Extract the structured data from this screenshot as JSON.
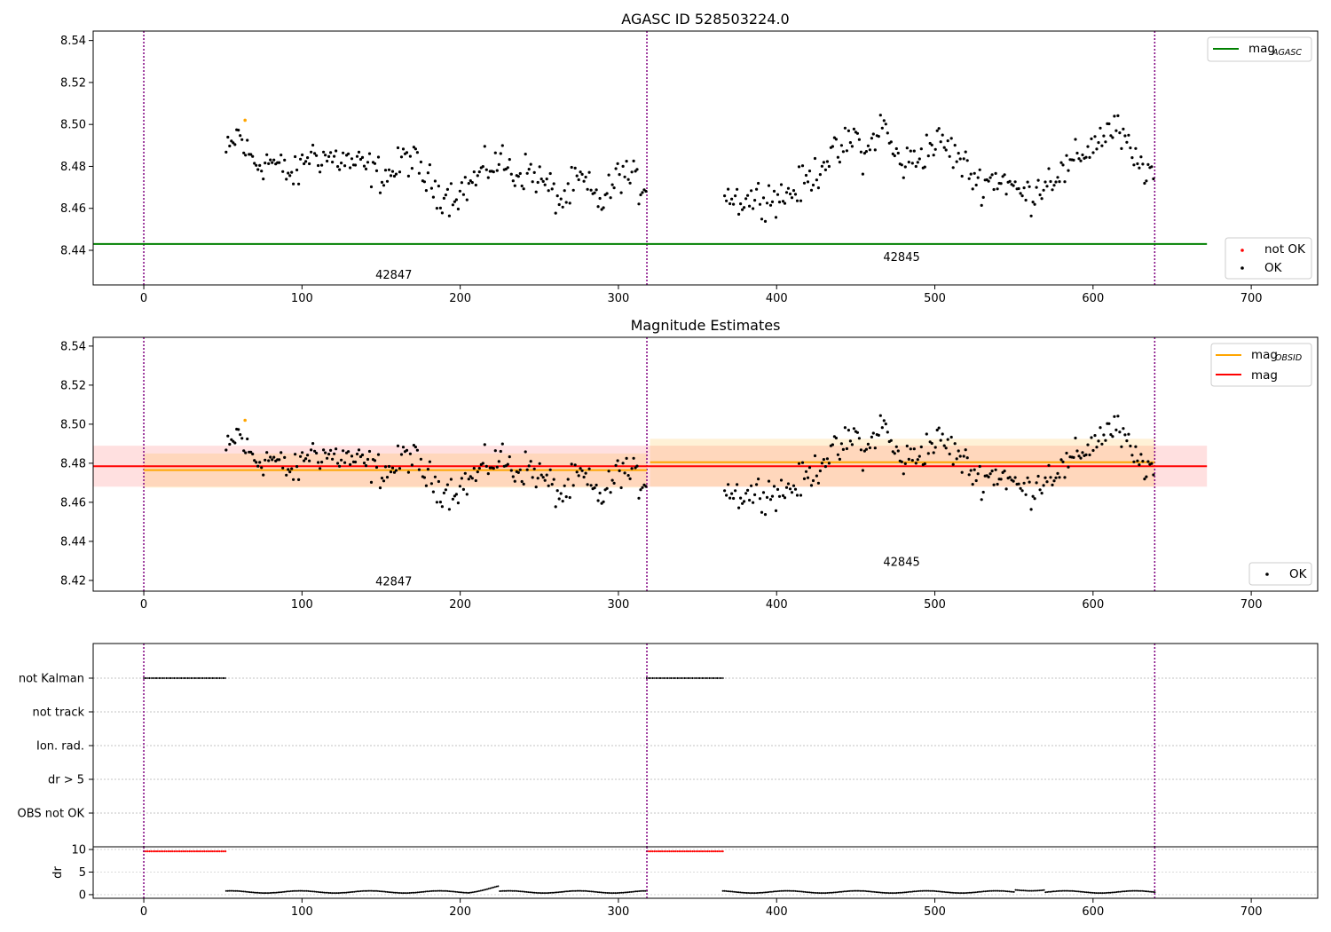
{
  "figure": {
    "panel1_title": "AGASC ID 528503224.0",
    "panel2_title": "Magnitude Estimates"
  },
  "colors": {
    "ok": "#000000",
    "not_ok": "#ff0000",
    "mag_agasc": "#008000",
    "mag_obsid": "#ffa500",
    "mag": "#ff0000",
    "obsid_boundary": "#800080",
    "flag_red": "#ff0000"
  },
  "chart_data": [
    {
      "type": "scatter",
      "title": "AGASC ID 528503224.0",
      "xlim": [
        -32,
        742
      ],
      "ylim": [
        8.4235,
        8.5445
      ],
      "xticks": [
        0,
        100,
        200,
        300,
        400,
        500,
        600,
        700
      ],
      "xtick_labels": [
        "0",
        "100",
        "200",
        "300",
        "400",
        "500",
        "600",
        "700"
      ],
      "yticks": [
        8.44,
        8.46,
        8.48,
        8.5,
        8.52,
        8.54
      ],
      "ytick_labels": [
        "8.44",
        "8.46",
        "8.48",
        "8.50",
        "8.52",
        "8.54"
      ],
      "obsid_boundaries": [
        0,
        318,
        639
      ],
      "obsid_labels": [
        {
          "text": "42847",
          "x": 158,
          "y": 8.4265
        },
        {
          "text": "42845",
          "x": 479,
          "y": 8.435
        }
      ],
      "mag_agasc": {
        "value": 8.443,
        "x_range": [
          -32,
          672
        ]
      },
      "ok_track": [
        [
          52,
          8.486
        ],
        [
          55,
          8.488
        ],
        [
          60,
          8.497
        ],
        [
          62,
          8.491
        ],
        [
          65,
          8.487
        ],
        [
          68,
          8.484
        ],
        [
          72,
          8.481
        ],
        [
          80,
          8.483
        ],
        [
          88,
          8.478
        ],
        [
          96,
          8.475
        ],
        [
          104,
          8.486
        ],
        [
          110,
          8.485
        ],
        [
          118,
          8.484
        ],
        [
          126,
          8.483
        ],
        [
          134,
          8.481
        ],
        [
          142,
          8.479
        ],
        [
          150,
          8.476
        ],
        [
          158,
          8.477
        ],
        [
          166,
          8.485
        ],
        [
          172,
          8.481
        ],
        [
          178,
          8.474
        ],
        [
          186,
          8.468
        ],
        [
          194,
          8.466
        ],
        [
          202,
          8.469
        ],
        [
          210,
          8.474
        ],
        [
          218,
          8.48
        ],
        [
          226,
          8.483
        ],
        [
          234,
          8.476
        ],
        [
          242,
          8.478
        ],
        [
          250,
          8.474
        ],
        [
          258,
          8.468
        ],
        [
          264,
          8.463
        ],
        [
          270,
          8.469
        ],
        [
          276,
          8.474
        ],
        [
          284,
          8.466
        ],
        [
          290,
          8.463
        ],
        [
          296,
          8.47
        ],
        [
          302,
          8.478
        ],
        [
          308,
          8.474
        ],
        [
          314,
          8.47
        ],
        [
          318,
          8.472
        ],
        [
          366,
          8.47
        ],
        [
          372,
          8.465
        ],
        [
          378,
          8.464
        ],
        [
          386,
          8.465
        ],
        [
          394,
          8.466
        ],
        [
          402,
          8.465
        ],
        [
          410,
          8.468
        ],
        [
          418,
          8.472
        ],
        [
          426,
          8.478
        ],
        [
          432,
          8.485
        ],
        [
          438,
          8.485
        ],
        [
          444,
          8.49
        ],
        [
          450,
          8.495
        ],
        [
          456,
          8.483
        ],
        [
          462,
          8.495
        ],
        [
          468,
          8.5
        ],
        [
          474,
          8.486
        ],
        [
          480,
          8.481
        ],
        [
          488,
          8.484
        ],
        [
          496,
          8.489
        ],
        [
          504,
          8.492
        ],
        [
          512,
          8.486
        ],
        [
          520,
          8.479
        ],
        [
          528,
          8.472
        ],
        [
          536,
          8.474
        ],
        [
          544,
          8.474
        ],
        [
          552,
          8.468
        ],
        [
          560,
          8.466
        ],
        [
          568,
          8.472
        ],
        [
          576,
          8.476
        ],
        [
          584,
          8.478
        ],
        [
          590,
          8.484
        ],
        [
          596,
          8.488
        ],
        [
          602,
          8.492
        ],
        [
          608,
          8.496
        ],
        [
          614,
          8.498
        ],
        [
          620,
          8.492
        ],
        [
          626,
          8.482
        ],
        [
          632,
          8.48
        ],
        [
          639,
          8.476
        ]
      ],
      "not_ok_points": [
        [
          64,
          8.502
        ]
      ],
      "legend": [
        {
          "label": "mag",
          "sub": "AGASC",
          "color": "#008000",
          "placement": "upper right"
        },
        {
          "label": "not OK",
          "color": "#ff0000",
          "placement": "lower right"
        },
        {
          "label": "OK",
          "color": "#000000",
          "placement": "lower right"
        }
      ]
    },
    {
      "type": "scatter",
      "title": "Magnitude Estimates",
      "xlim": [
        -32,
        742
      ],
      "ylim": [
        8.4145,
        8.5445
      ],
      "xticks": [
        0,
        100,
        200,
        300,
        400,
        500,
        600,
        700
      ],
      "xtick_labels": [
        "0",
        "100",
        "200",
        "300",
        "400",
        "500",
        "600",
        "700"
      ],
      "yticks": [
        8.42,
        8.44,
        8.46,
        8.48,
        8.5,
        8.52,
        8.54
      ],
      "ytick_labels": [
        "8.42",
        "8.44",
        "8.46",
        "8.48",
        "8.50",
        "8.52",
        "8.54"
      ],
      "obsid_boundaries": [
        0,
        318,
        639
      ],
      "obsid_labels": [
        {
          "text": "42847",
          "x": 158,
          "y": 8.4175
        },
        {
          "text": "42845",
          "x": 479,
          "y": 8.4275
        }
      ],
      "mag": {
        "value": 8.4785,
        "band": [
          8.468,
          8.489
        ],
        "x_range": [
          -32,
          672
        ]
      },
      "mag_obsid": [
        {
          "x_range": [
            0,
            318
          ],
          "value": 8.4765,
          "band": [
            8.4675,
            8.485
          ]
        },
        {
          "x_range": [
            320,
            639
          ],
          "value": 8.4805,
          "band": [
            8.468,
            8.4925
          ]
        }
      ],
      "ok_track": "same as panel 1",
      "not_ok_points": [
        [
          64,
          8.502
        ]
      ],
      "legend": [
        {
          "label": "mag",
          "sub": "OBSID",
          "color": "#ffa500",
          "placement": "upper right"
        },
        {
          "label": "mag",
          "color": "#ff0000",
          "placement": "upper right"
        },
        {
          "label": "OK",
          "color": "#000000",
          "placement": "lower right"
        }
      ]
    },
    {
      "type": "scatter",
      "title": "",
      "xlim": [
        -32,
        742
      ],
      "categories": [
        "not Kalman",
        "not track",
        "Ion. rad.",
        "dr > 5",
        "OBS not OK"
      ],
      "flagged_ranges": {
        "not Kalman": [
          [
            0,
            52
          ],
          [
            318,
            366
          ]
        ]
      },
      "xticks": [
        0,
        100,
        200,
        300,
        400,
        500,
        600,
        700
      ],
      "xtick_labels": [
        "0",
        "100",
        "200",
        "300",
        "400",
        "500",
        "600",
        "700"
      ]
    },
    {
      "type": "scatter",
      "title": "",
      "ylabel": "dr",
      "xlim": [
        -32,
        742
      ],
      "ylim": [
        -0.8,
        10.6
      ],
      "yticks": [
        0,
        5,
        10
      ],
      "ytick_labels": [
        "0",
        "5",
        "10"
      ],
      "xticks": [
        0,
        100,
        200,
        300,
        400,
        500,
        600,
        700
      ],
      "xtick_labels": [
        "0",
        "100",
        "200",
        "300",
        "400",
        "500",
        "600",
        "700"
      ],
      "high_dr_ranges": [
        [
          0,
          52
        ],
        [
          318,
          366
        ]
      ],
      "high_dr_value": 9.6,
      "low_dr_segments": [
        [
          52,
          318
        ],
        [
          366,
          639
        ]
      ],
      "low_dr_value": 0.6
    }
  ]
}
